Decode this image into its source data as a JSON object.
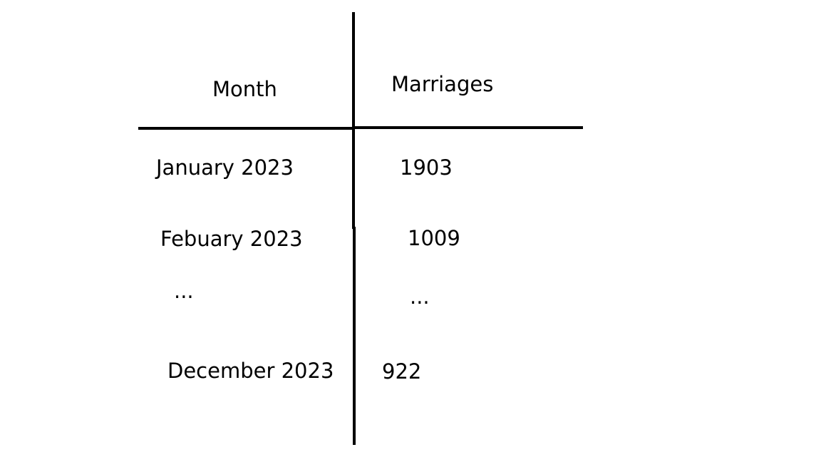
{
  "table": {
    "headers": {
      "month": "Month",
      "marriages": "Marriages"
    },
    "rows": [
      {
        "month": "January 2023",
        "marriages": "1903"
      },
      {
        "month": "Febuary 2023",
        "marriages": "1009"
      },
      {
        "month": "...",
        "marriages": "..."
      },
      {
        "month": "December 2023",
        "marriages": "922"
      }
    ]
  },
  "colors": {
    "background": "#ffffff",
    "ink": "#000000"
  }
}
